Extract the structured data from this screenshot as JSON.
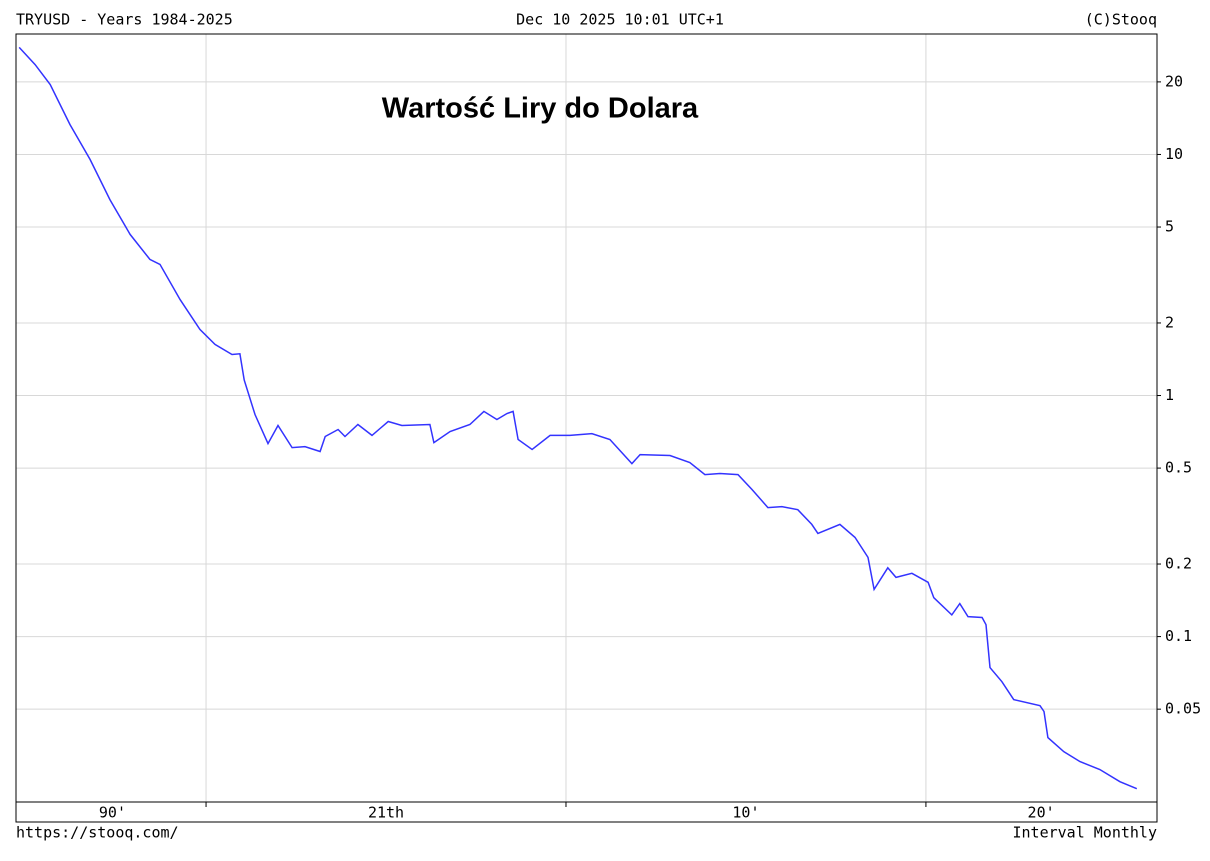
{
  "header": {
    "left": "TRYUSD - Years 1984-2025",
    "center": "Dec 10 2025 10:01 UTC+1",
    "right": "(C)Stooq"
  },
  "footer": {
    "left": "https://stooq.com/",
    "right": "Interval Monthly"
  },
  "chart_data": {
    "type": "line",
    "title": "Wartość Liry do Dolara",
    "x": [
      1994.81,
      1995.25,
      1995.67,
      1996.22,
      1996.78,
      1997.33,
      1997.89,
      1998.44,
      1998.72,
      1999.28,
      1999.83,
      2000.25,
      2000.72,
      2000.94,
      2001.06,
      2001.36,
      2001.72,
      2002.0,
      2002.39,
      2002.75,
      2003.17,
      2003.31,
      2003.67,
      2003.86,
      2004.22,
      2004.61,
      2005.06,
      2005.44,
      2006.22,
      2006.33,
      2006.78,
      2007.33,
      2007.72,
      2008.08,
      2008.36,
      2008.53,
      2008.67,
      2009.06,
      2009.56,
      2010.11,
      2010.72,
      2011.22,
      2011.83,
      2012.06,
      2012.89,
      2013.44,
      2013.86,
      2014.28,
      2014.78,
      2015.17,
      2015.61,
      2016.0,
      2016.44,
      2016.83,
      2017.0,
      2017.61,
      2018.03,
      2018.39,
      2018.56,
      2018.94,
      2019.17,
      2019.61,
      2020.06,
      2020.22,
      2020.72,
      2020.94,
      2021.17,
      2021.56,
      2021.67,
      2021.78,
      2022.11,
      2022.44,
      2023.17,
      2023.28,
      2023.39,
      2023.83,
      2024.28,
      2024.83,
      2025.39,
      2025.86
    ],
    "values": [
      27.8,
      23.6,
      19.5,
      13.3,
      9.53,
      6.5,
      4.66,
      3.67,
      3.5,
      2.5,
      1.88,
      1.63,
      1.48,
      1.49,
      1.16,
      0.834,
      0.632,
      0.751,
      0.608,
      0.614,
      0.586,
      0.676,
      0.723,
      0.676,
      0.758,
      0.683,
      0.78,
      0.751,
      0.758,
      0.638,
      0.709,
      0.758,
      0.859,
      0.795,
      0.842,
      0.859,
      0.657,
      0.597,
      0.683,
      0.683,
      0.695,
      0.657,
      0.522,
      0.569,
      0.564,
      0.527,
      0.47,
      0.475,
      0.47,
      0.407,
      0.343,
      0.346,
      0.336,
      0.292,
      0.268,
      0.292,
      0.258,
      0.213,
      0.157,
      0.193,
      0.176,
      0.183,
      0.168,
      0.145,
      0.123,
      0.137,
      0.121,
      0.12,
      0.112,
      0.0744,
      0.065,
      0.0548,
      0.0517,
      0.0489,
      0.0381,
      0.0333,
      0.0303,
      0.0281,
      0.025,
      0.0234
    ],
    "color": "#3333ff",
    "xlim": [
      1994.72,
      2026.42
    ],
    "xticks": [
      2000,
      2010,
      2020
    ],
    "xtick_labels": [
      {
        "value": 1997.4,
        "label": "90'"
      },
      {
        "value": 2005,
        "label": "21th"
      },
      {
        "value": 2015,
        "label": "10'"
      },
      {
        "value": 2023.2,
        "label": "20'"
      }
    ],
    "ylim": [
      0.0206,
      31.6
    ],
    "yticks": [
      20,
      10,
      5,
      2,
      1,
      0.5,
      0.2,
      0.1,
      0.05
    ],
    "log_scale": true,
    "grid": true
  }
}
